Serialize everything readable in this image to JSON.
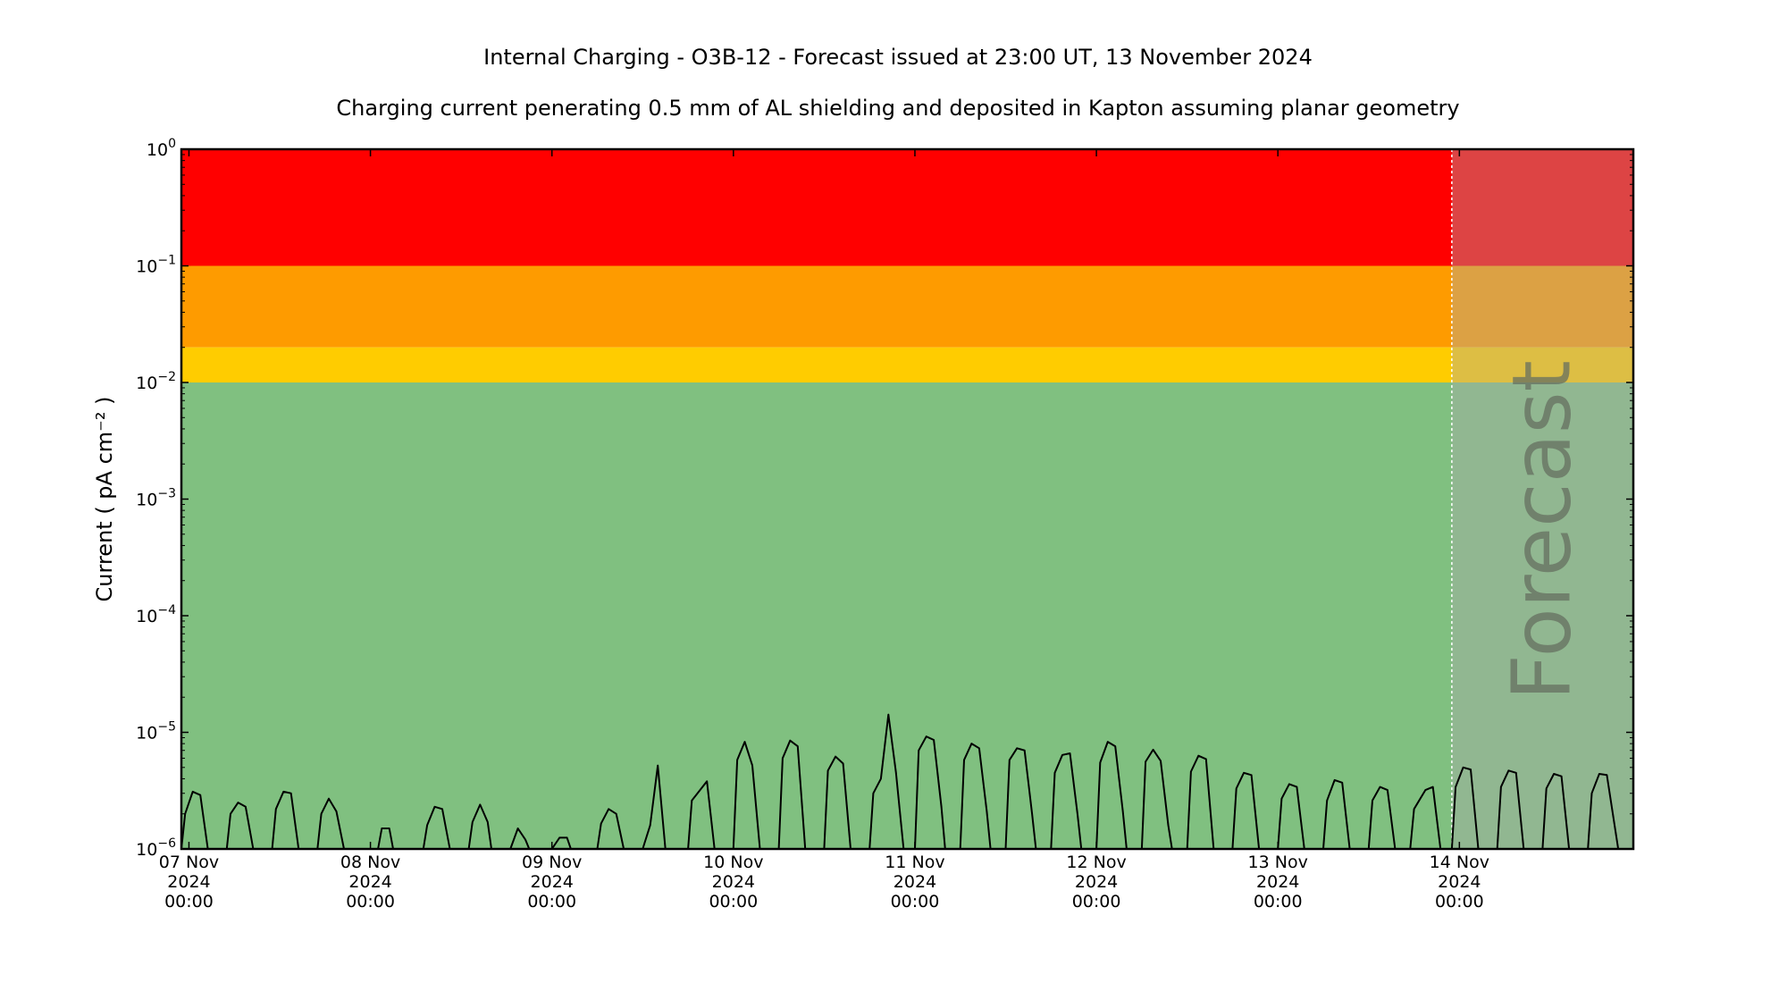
{
  "title": "Internal Charging - O3B-12 - Forecast issued at 23:00 UT, 13 November 2024",
  "subtitle": "Charging current penerating 0.5 mm of AL shielding and deposited in Kapton assuming planar geometry",
  "forecast_label": "Forecast",
  "colors": {
    "red": "#ff0000",
    "orange": "#fe9b00",
    "yellow": "#ffcc00",
    "green": "#80c080",
    "forecast_overlay": "#aaaaaa",
    "line": "#000000"
  },
  "chart_data": {
    "type": "line",
    "title": "Internal Charging - O3B-12 - Forecast issued at 23:00 UT, 13 November 2024",
    "subtitle": "Charging current penerating 0.5 mm of AL shielding and deposited in Kapton assuming planar geometry",
    "ylabel": "Current ( pA cm⁻² )",
    "xlabel": "",
    "yscale": "log",
    "ylim": [
      1e-06,
      1
    ],
    "xlim": [
      "2024-11-06T23:00",
      "2024-11-14T23:00"
    ],
    "forecast_start": "2024-11-13T23:00",
    "y_ticks": [
      {
        "value": 1e-06,
        "base": "10",
        "exp": "−6"
      },
      {
        "value": 1e-05,
        "base": "10",
        "exp": "−5"
      },
      {
        "value": 0.0001,
        "base": "10",
        "exp": "−4"
      },
      {
        "value": 0.001,
        "base": "10",
        "exp": "−3"
      },
      {
        "value": 0.01,
        "base": "10",
        "exp": "−2"
      },
      {
        "value": 0.1,
        "base": "10",
        "exp": "−1"
      },
      {
        "value": 1,
        "base": "10",
        "exp": "0"
      }
    ],
    "x_ticks": [
      {
        "t": "2024-11-07T00:00",
        "lines": [
          "07 Nov",
          "2024",
          "00:00"
        ]
      },
      {
        "t": "2024-11-08T00:00",
        "lines": [
          "08 Nov",
          "2024",
          "00:00"
        ]
      },
      {
        "t": "2024-11-09T00:00",
        "lines": [
          "09 Nov",
          "2024",
          "00:00"
        ]
      },
      {
        "t": "2024-11-10T00:00",
        "lines": [
          "10 Nov",
          "2024",
          "00:00"
        ]
      },
      {
        "t": "2024-11-11T00:00",
        "lines": [
          "11 Nov",
          "2024",
          "00:00"
        ]
      },
      {
        "t": "2024-11-12T00:00",
        "lines": [
          "12 Nov",
          "2024",
          "00:00"
        ]
      },
      {
        "t": "2024-11-13T00:00",
        "lines": [
          "13 Nov",
          "2024",
          "00:00"
        ]
      },
      {
        "t": "2024-11-14T00:00",
        "lines": [
          "14 Nov",
          "2024",
          "00:00"
        ]
      }
    ],
    "bands": [
      {
        "name": "red",
        "from": 0.1,
        "to": 1,
        "color": "#ff0000"
      },
      {
        "name": "orange",
        "from": 0.02,
        "to": 0.1,
        "color": "#fe9b00"
      },
      {
        "name": "yellow",
        "from": 0.01,
        "to": 0.02,
        "color": "#ffcc00"
      },
      {
        "name": "green",
        "from": 1e-06,
        "to": 0.01,
        "color": "#80c080"
      }
    ],
    "series": [
      {
        "values": [
          [
            "2024-11-06T23:00",
            1e-06
          ],
          [
            "2024-11-06T23:30",
            2e-06
          ],
          [
            "2024-11-07T00:30",
            3.1e-06
          ],
          [
            "2024-11-07T01:30",
            2.9e-06
          ],
          [
            "2024-11-07T02:30",
            1e-06
          ],
          [
            "2024-11-07T05:00",
            1e-06
          ],
          [
            "2024-11-07T05:30",
            2e-06
          ],
          [
            "2024-11-07T06:30",
            2.5e-06
          ],
          [
            "2024-11-07T07:30",
            2.3e-06
          ],
          [
            "2024-11-07T08:30",
            1e-06
          ],
          [
            "2024-11-07T11:00",
            1e-06
          ],
          [
            "2024-11-07T11:30",
            2.2e-06
          ],
          [
            "2024-11-07T12:30",
            3.1e-06
          ],
          [
            "2024-11-07T13:30",
            3e-06
          ],
          [
            "2024-11-07T14:30",
            1e-06
          ],
          [
            "2024-11-07T17:00",
            1e-06
          ],
          [
            "2024-11-07T17:30",
            2e-06
          ],
          [
            "2024-11-07T18:30",
            2.7e-06
          ],
          [
            "2024-11-07T19:30",
            2.1e-06
          ],
          [
            "2024-11-07T20:30",
            1e-06
          ],
          [
            "2024-11-08T01:00",
            1e-06
          ],
          [
            "2024-11-08T01:30",
            1.5e-06
          ],
          [
            "2024-11-08T02:30",
            1.5e-06
          ],
          [
            "2024-11-08T03:00",
            1e-06
          ],
          [
            "2024-11-08T07:00",
            1e-06
          ],
          [
            "2024-11-08T07:30",
            1.6e-06
          ],
          [
            "2024-11-08T08:30",
            2.3e-06
          ],
          [
            "2024-11-08T09:30",
            2.2e-06
          ],
          [
            "2024-11-08T10:30",
            1e-06
          ],
          [
            "2024-11-08T13:00",
            1e-06
          ],
          [
            "2024-11-08T13:30",
            1.7e-06
          ],
          [
            "2024-11-08T14:30",
            2.4e-06
          ],
          [
            "2024-11-08T15:30",
            1.7e-06
          ],
          [
            "2024-11-08T16:00",
            1e-06
          ],
          [
            "2024-11-08T18:30",
            1e-06
          ],
          [
            "2024-11-08T19:30",
            1.5e-06
          ],
          [
            "2024-11-08T20:30",
            1.2e-06
          ],
          [
            "2024-11-08T21:00",
            1e-06
          ],
          [
            "2024-11-09T00:00",
            1e-06
          ],
          [
            "2024-11-09T01:00",
            1.25e-06
          ],
          [
            "2024-11-09T02:00",
            1.25e-06
          ],
          [
            "2024-11-09T02:30",
            1e-06
          ],
          [
            "2024-11-09T06:00",
            1e-06
          ],
          [
            "2024-11-09T06:30",
            1.65e-06
          ],
          [
            "2024-11-09T07:30",
            2.2e-06
          ],
          [
            "2024-11-09T08:30",
            2e-06
          ],
          [
            "2024-11-09T09:30",
            1e-06
          ],
          [
            "2024-11-09T12:00",
            1e-06
          ],
          [
            "2024-11-09T13:00",
            1.6e-06
          ],
          [
            "2024-11-09T14:00",
            5.2e-06
          ],
          [
            "2024-11-09T15:00",
            1e-06
          ],
          [
            "2024-11-09T18:00",
            1e-06
          ],
          [
            "2024-11-09T18:30",
            2.6e-06
          ],
          [
            "2024-11-09T20:30",
            3.8e-06
          ],
          [
            "2024-11-09T21:30",
            1e-06
          ],
          [
            "2024-11-10T00:00",
            1e-06
          ],
          [
            "2024-11-10T00:30",
            5.8e-06
          ],
          [
            "2024-11-10T01:30",
            8.3e-06
          ],
          [
            "2024-11-10T02:30",
            5.2e-06
          ],
          [
            "2024-11-10T03:30",
            1e-06
          ],
          [
            "2024-11-10T06:00",
            1e-06
          ],
          [
            "2024-11-10T06:30",
            6e-06
          ],
          [
            "2024-11-10T07:30",
            8.5e-06
          ],
          [
            "2024-11-10T08:30",
            7.6e-06
          ],
          [
            "2024-11-10T09:30",
            1e-06
          ],
          [
            "2024-11-10T12:00",
            1e-06
          ],
          [
            "2024-11-10T12:30",
            4.7e-06
          ],
          [
            "2024-11-10T13:30",
            6.2e-06
          ],
          [
            "2024-11-10T14:30",
            5.4e-06
          ],
          [
            "2024-11-10T15:30",
            1e-06
          ],
          [
            "2024-11-10T18:00",
            1e-06
          ],
          [
            "2024-11-10T18:30",
            3e-06
          ],
          [
            "2024-11-10T19:30",
            4e-06
          ],
          [
            "2024-11-10T20:30",
            1.42e-05
          ],
          [
            "2024-11-10T21:30",
            4.5e-06
          ],
          [
            "2024-11-10T22:30",
            1e-06
          ],
          [
            "2024-11-11T00:00",
            1e-06
          ],
          [
            "2024-11-11T00:30",
            7e-06
          ],
          [
            "2024-11-11T01:30",
            9.2e-06
          ],
          [
            "2024-11-11T02:30",
            8.6e-06
          ],
          [
            "2024-11-11T03:30",
            2.3e-06
          ],
          [
            "2024-11-11T04:00",
            1e-06
          ],
          [
            "2024-11-11T06:00",
            1e-06
          ],
          [
            "2024-11-11T06:30",
            5.8e-06
          ],
          [
            "2024-11-11T07:30",
            8e-06
          ],
          [
            "2024-11-11T08:30",
            7.3e-06
          ],
          [
            "2024-11-11T09:30",
            2.1e-06
          ],
          [
            "2024-11-11T10:00",
            1e-06
          ],
          [
            "2024-11-11T12:00",
            1e-06
          ],
          [
            "2024-11-11T12:30",
            5.8e-06
          ],
          [
            "2024-11-11T13:30",
            7.3e-06
          ],
          [
            "2024-11-11T14:30",
            7e-06
          ],
          [
            "2024-11-11T15:30",
            2e-06
          ],
          [
            "2024-11-11T16:00",
            1e-06
          ],
          [
            "2024-11-11T18:00",
            1e-06
          ],
          [
            "2024-11-11T18:30",
            4.5e-06
          ],
          [
            "2024-11-11T19:30",
            6.4e-06
          ],
          [
            "2024-11-11T20:30",
            6.6e-06
          ],
          [
            "2024-11-11T21:30",
            2e-06
          ],
          [
            "2024-11-11T22:00",
            1e-06
          ],
          [
            "2024-11-12T00:00",
            1e-06
          ],
          [
            "2024-11-12T00:30",
            5.5e-06
          ],
          [
            "2024-11-12T01:30",
            8.3e-06
          ],
          [
            "2024-11-12T02:30",
            7.6e-06
          ],
          [
            "2024-11-12T03:30",
            2.1e-06
          ],
          [
            "2024-11-12T04:00",
            1e-06
          ],
          [
            "2024-11-12T06:00",
            1e-06
          ],
          [
            "2024-11-12T06:30",
            5.6e-06
          ],
          [
            "2024-11-12T07:30",
            7.1e-06
          ],
          [
            "2024-11-12T08:30",
            5.7e-06
          ],
          [
            "2024-11-12T09:30",
            1.6e-06
          ],
          [
            "2024-11-12T10:00",
            1e-06
          ],
          [
            "2024-11-12T12:00",
            1e-06
          ],
          [
            "2024-11-12T12:30",
            4.6e-06
          ],
          [
            "2024-11-12T13:30",
            6.3e-06
          ],
          [
            "2024-11-12T14:30",
            5.9e-06
          ],
          [
            "2024-11-12T15:30",
            1e-06
          ],
          [
            "2024-11-12T18:00",
            1e-06
          ],
          [
            "2024-11-12T18:30",
            3.3e-06
          ],
          [
            "2024-11-12T19:30",
            4.5e-06
          ],
          [
            "2024-11-12T20:30",
            4.3e-06
          ],
          [
            "2024-11-12T21:30",
            1e-06
          ],
          [
            "2024-11-13T00:00",
            1e-06
          ],
          [
            "2024-11-13T00:30",
            2.7e-06
          ],
          [
            "2024-11-13T01:30",
            3.6e-06
          ],
          [
            "2024-11-13T02:30",
            3.4e-06
          ],
          [
            "2024-11-13T03:30",
            1e-06
          ],
          [
            "2024-11-13T06:00",
            1e-06
          ],
          [
            "2024-11-13T06:30",
            2.6e-06
          ],
          [
            "2024-11-13T07:30",
            3.9e-06
          ],
          [
            "2024-11-13T08:30",
            3.7e-06
          ],
          [
            "2024-11-13T09:30",
            1e-06
          ],
          [
            "2024-11-13T12:00",
            1e-06
          ],
          [
            "2024-11-13T12:30",
            2.6e-06
          ],
          [
            "2024-11-13T13:30",
            3.4e-06
          ],
          [
            "2024-11-13T14:30",
            3.2e-06
          ],
          [
            "2024-11-13T15:30",
            1e-06
          ],
          [
            "2024-11-13T17:30",
            1e-06
          ],
          [
            "2024-11-13T18:00",
            2.2e-06
          ],
          [
            "2024-11-13T19:30",
            3.2e-06
          ],
          [
            "2024-11-13T20:30",
            3.4e-06
          ],
          [
            "2024-11-13T21:30",
            1e-06
          ],
          [
            "2024-11-13T23:00",
            1e-06
          ],
          [
            "2024-11-13T23:30",
            3.4e-06
          ],
          [
            "2024-11-14T00:30",
            5e-06
          ],
          [
            "2024-11-14T01:30",
            4.8e-06
          ],
          [
            "2024-11-14T02:30",
            1e-06
          ],
          [
            "2024-11-14T05:00",
            1e-06
          ],
          [
            "2024-11-14T05:30",
            3.4e-06
          ],
          [
            "2024-11-14T06:30",
            4.7e-06
          ],
          [
            "2024-11-14T07:30",
            4.5e-06
          ],
          [
            "2024-11-14T08:30",
            1e-06
          ],
          [
            "2024-11-14T11:00",
            1e-06
          ],
          [
            "2024-11-14T11:30",
            3.3e-06
          ],
          [
            "2024-11-14T12:30",
            4.4e-06
          ],
          [
            "2024-11-14T13:30",
            4.2e-06
          ],
          [
            "2024-11-14T14:30",
            1e-06
          ],
          [
            "2024-11-14T17:00",
            1e-06
          ],
          [
            "2024-11-14T17:30",
            3e-06
          ],
          [
            "2024-11-14T18:30",
            4.4e-06
          ],
          [
            "2024-11-14T19:30",
            4.3e-06
          ],
          [
            "2024-11-14T21:00",
            1e-06
          ]
        ]
      }
    ],
    "grid": false,
    "legend": "none"
  }
}
